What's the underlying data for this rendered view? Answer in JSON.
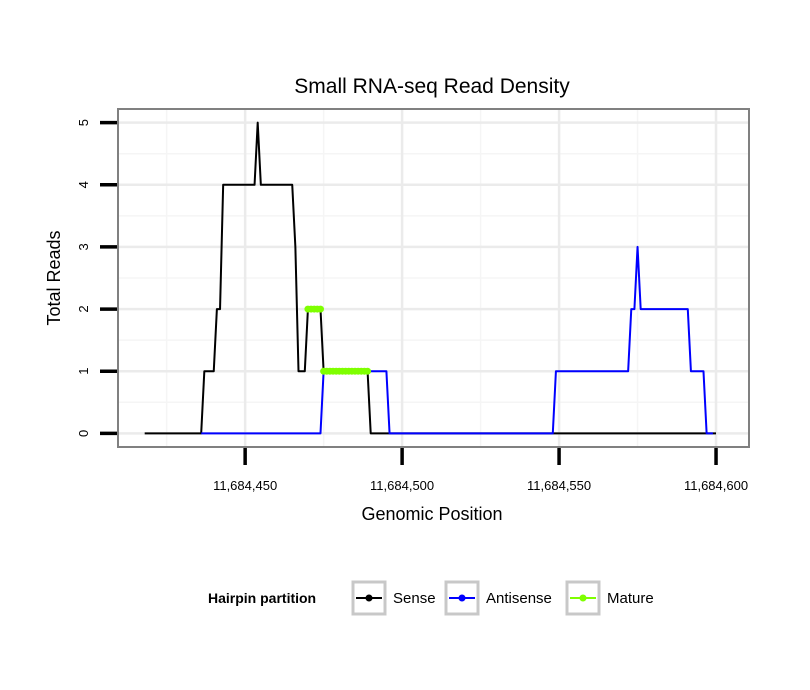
{
  "chart_data": {
    "type": "line",
    "title": "Small RNA-seq Read Density",
    "xlabel": "Genomic Position",
    "ylabel": "Total Reads",
    "xlim": [
      11684409.5,
      11684610.5
    ],
    "ylim": [
      -0.22,
      5.22
    ],
    "x_ticks": [
      11684450,
      11684500,
      11684550,
      11684600
    ],
    "x_tick_labels": [
      "11,684,450",
      "11,684,500",
      "11,684,550",
      "11,684,600"
    ],
    "y_ticks": [
      0,
      1,
      2,
      3,
      4,
      5
    ],
    "y_tick_labels": [
      "0",
      "1",
      "2",
      "3",
      "4",
      "5"
    ],
    "grid": true,
    "legend": {
      "title": "Hairpin partition",
      "position": "bottom",
      "entries": [
        "Sense",
        "Antisense",
        "Mature"
      ]
    },
    "series": [
      {
        "name": "Sense",
        "color": "#000000",
        "style": "step-line",
        "points": [
          [
            11684418,
            0
          ],
          [
            11684436,
            0
          ],
          [
            11684437,
            1
          ],
          [
            11684440,
            1
          ],
          [
            11684441,
            2
          ],
          [
            11684442,
            2
          ],
          [
            11684443,
            4
          ],
          [
            11684453,
            4
          ],
          [
            11684454,
            5
          ],
          [
            11684455,
            4
          ],
          [
            11684465,
            4
          ],
          [
            11684466,
            3
          ],
          [
            11684467,
            1
          ],
          [
            11684469,
            1
          ],
          [
            11684470,
            2
          ],
          [
            11684474,
            2
          ],
          [
            11684475,
            1
          ],
          [
            11684489,
            1
          ],
          [
            11684490,
            0
          ],
          [
            11684600,
            0
          ]
        ]
      },
      {
        "name": "Antisense",
        "color": "#0000ff",
        "style": "step-line",
        "points": [
          [
            11684436,
            0
          ],
          [
            11684474,
            0
          ],
          [
            11684475,
            1
          ],
          [
            11684495,
            1
          ],
          [
            11684496,
            0
          ],
          [
            11684548,
            0
          ],
          [
            11684549,
            1
          ],
          [
            11684572,
            1
          ],
          [
            11684573,
            2
          ],
          [
            11684574,
            2
          ],
          [
            11684575,
            3
          ],
          [
            11684576,
            2
          ],
          [
            11684591,
            2
          ],
          [
            11684592,
            1
          ],
          [
            11684596,
            1
          ],
          [
            11684597,
            0
          ],
          [
            11684599,
            0
          ]
        ]
      },
      {
        "name": "Mature",
        "color": "#7fff00",
        "style": "points",
        "points": [
          [
            11684470,
            2
          ],
          [
            11684471,
            2
          ],
          [
            11684472,
            2
          ],
          [
            11684473,
            2
          ],
          [
            11684474,
            2
          ],
          [
            11684475,
            1
          ],
          [
            11684476,
            1
          ],
          [
            11684477,
            1
          ],
          [
            11684478,
            1
          ],
          [
            11684479,
            1
          ],
          [
            11684480,
            1
          ],
          [
            11684481,
            1
          ],
          [
            11684482,
            1
          ],
          [
            11684483,
            1
          ],
          [
            11684484,
            1
          ],
          [
            11684485,
            1
          ],
          [
            11684486,
            1
          ],
          [
            11684487,
            1
          ],
          [
            11684488,
            1
          ],
          [
            11684489,
            1
          ]
        ]
      }
    ]
  }
}
